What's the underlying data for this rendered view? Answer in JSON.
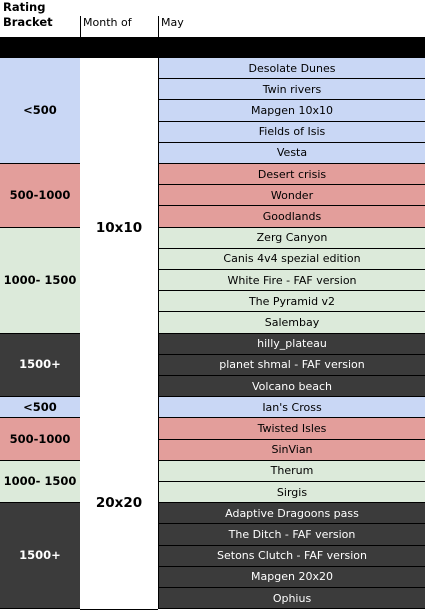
{
  "header": {
    "rating_bracket": "Rating\nBracket",
    "month_of": "Month of",
    "month": "May"
  },
  "colors": {
    "under500": "#c9d7f5",
    "mid": "#e39e9b",
    "upper": "#dceada",
    "top": "#3b3b3b"
  },
  "groups": [
    {
      "size": "10x10",
      "brackets": [
        {
          "label": "<500",
          "tier": "under500",
          "maps": [
            "Desolate Dunes",
            "Twin rivers",
            "Mapgen 10x10",
            "Fields of Isis",
            "Vesta"
          ]
        },
        {
          "label": "500-1000",
          "tier": "mid",
          "maps": [
            "Desert crisis",
            "Wonder",
            "Goodlands"
          ]
        },
        {
          "label": "1000-\n1500",
          "tier": "upper",
          "maps": [
            "Zerg Canyon",
            "Canis 4v4 spezial edition",
            "White Fire - FAF version",
            "The Pyramid v2",
            "Salembay"
          ]
        },
        {
          "label": "1500+",
          "tier": "top",
          "maps": [
            "hilly_plateau",
            "planet shmal - FAF version",
            "Volcano beach"
          ]
        }
      ]
    },
    {
      "size": "20x20",
      "brackets": [
        {
          "label": "<500",
          "tier": "under500",
          "maps": [
            "Ian's Cross"
          ]
        },
        {
          "label": "500-1000",
          "tier": "mid",
          "maps": [
            "Twisted Isles",
            "SinVian"
          ]
        },
        {
          "label": "1000-\n1500",
          "tier": "upper",
          "maps": [
            "Therum",
            "Sirgis"
          ]
        },
        {
          "label": "1500+",
          "tier": "top",
          "maps": [
            "Adaptive Dragoons pass",
            "The Ditch - FAF version",
            "Setons Clutch - FAF version",
            "Mapgen 20x20",
            "Ophius"
          ]
        }
      ]
    }
  ]
}
